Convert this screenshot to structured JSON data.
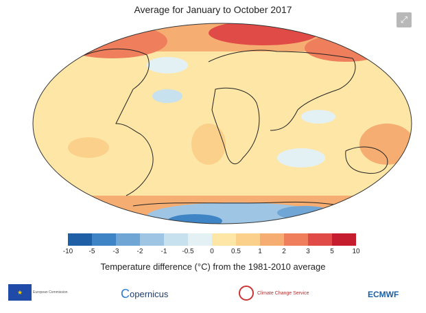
{
  "title": "Average for January to October 2017",
  "expand_icon": "expand-icon",
  "legend": {
    "labels": [
      "-10",
      "-5",
      "-3",
      "-2",
      "-1",
      "-0.5",
      "0",
      "0.5",
      "1",
      "2",
      "3",
      "5",
      "10"
    ],
    "colors": [
      "#1e5fa5",
      "#3f85c5",
      "#6fa6d6",
      "#9ec6e4",
      "#c8e1ef",
      "#e4f1f4",
      "#fff4c4",
      "#fde6a6",
      "#fbd08a",
      "#f6ad72",
      "#ee7e5c",
      "#e04a47",
      "#c51d2d"
    ],
    "caption": "Temperature difference (°C) from the 1981-2010 average"
  },
  "logos": {
    "eu": "European Commission",
    "copernicus": "opernicus",
    "c3s": "Climate Change Service",
    "ecmwf": "ECMWF"
  }
}
